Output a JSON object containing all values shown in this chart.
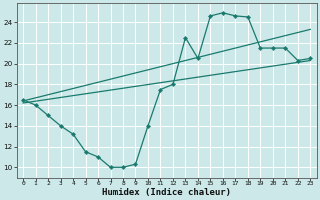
{
  "bg_color": "#cce8e8",
  "grid_color": "#b0d8d8",
  "line_color": "#1a7a6e",
  "xlabel": "Humidex (Indice chaleur)",
  "xlim": [
    -0.5,
    23.5
  ],
  "ylim": [
    9.0,
    25.8
  ],
  "xticks": [
    0,
    1,
    2,
    3,
    4,
    5,
    6,
    7,
    8,
    9,
    10,
    11,
    12,
    13,
    14,
    15,
    16,
    17,
    18,
    19,
    20,
    21,
    22,
    23
  ],
  "yticks": [
    10,
    12,
    14,
    16,
    18,
    20,
    22,
    24
  ],
  "curve_x": [
    0,
    1,
    2,
    3,
    4,
    5,
    6,
    7,
    8,
    9,
    10,
    11,
    12,
    13,
    14,
    15,
    16,
    17,
    18,
    19,
    20,
    21,
    22,
    23
  ],
  "curve_y": [
    16.5,
    16.0,
    15.0,
    14.0,
    13.2,
    11.5,
    11.0,
    10.0,
    10.0,
    10.3,
    14.0,
    17.5,
    18.0,
    22.5,
    20.5,
    24.6,
    24.9,
    24.6,
    24.5,
    21.5,
    21.5,
    21.5,
    20.3,
    20.5
  ],
  "line1_x": [
    0,
    23
  ],
  "line1_y": [
    16.4,
    23.3
  ],
  "line2_x": [
    0,
    23
  ],
  "line2_y": [
    16.2,
    20.3
  ],
  "figsize": [
    3.2,
    2.0
  ],
  "dpi": 100
}
